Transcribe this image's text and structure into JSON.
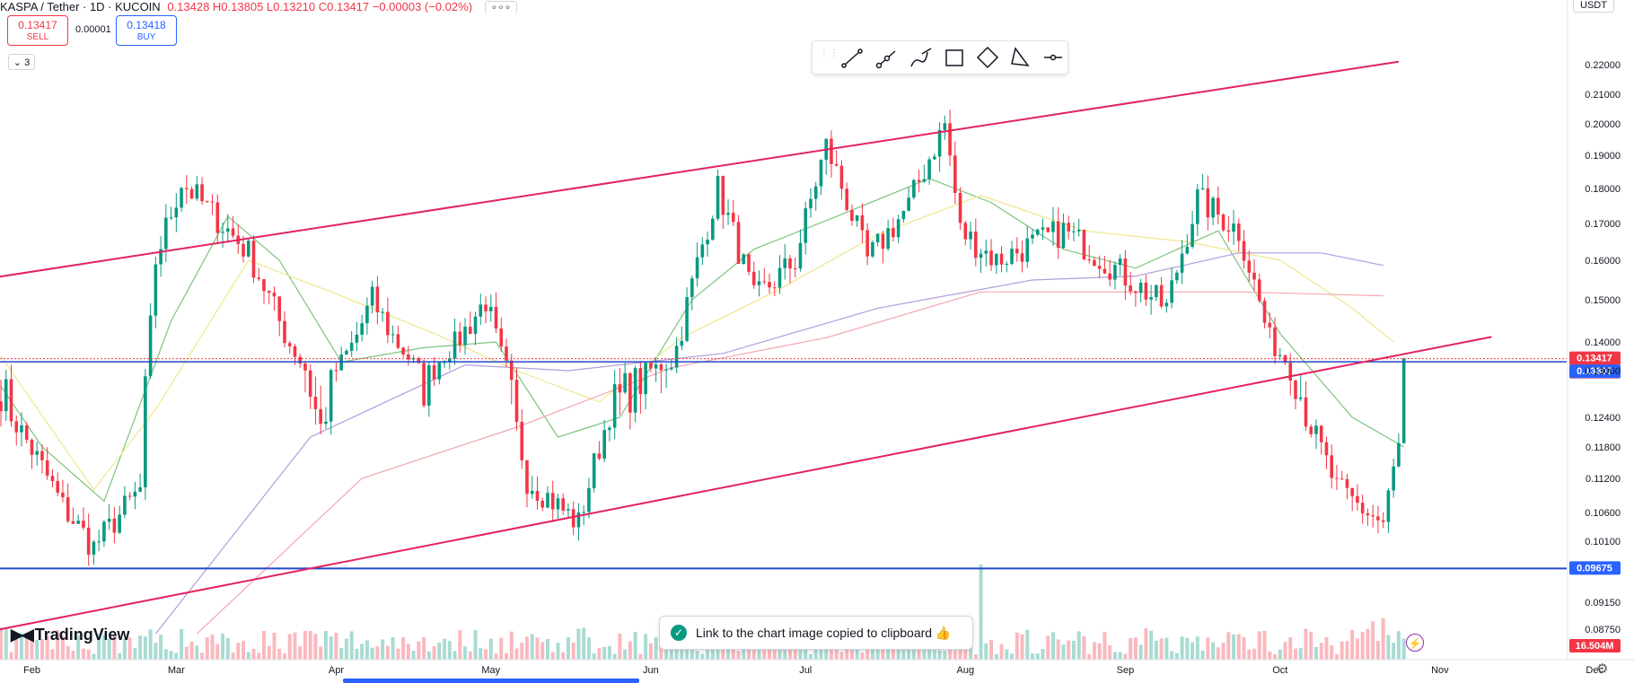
{
  "header": {
    "symbol": "KASPA / Tether · 1D · KUCOIN",
    "ohlc": "0.13428 H0.13805 L0.13210 C0.13417 −0.00003 (−0.02%)",
    "more_label": "∘∘∘"
  },
  "trade": {
    "sell_price": "0.13417",
    "sell_label": "SELL",
    "buy_price": "0.13418",
    "buy_label": "BUY",
    "spread": "0.00001"
  },
  "indicators_toggle": "3",
  "currency": "USDT",
  "toast": {
    "message": "Link to the chart image copied to clipboard 👍"
  },
  "logo": "TradingView",
  "drawing_tools": [
    "trend-line-icon",
    "ray-icon",
    "brush-icon",
    "rectangle-icon",
    "path-icon",
    "triangle-icon",
    "horizontal-ray-icon"
  ],
  "colors": {
    "up": "#089981",
    "down": "#f23645",
    "channel": "#e2235e",
    "support": "#2448c8",
    "ma_fast": "#7dc47e",
    "ma_mid": "#f0e68c",
    "ma_slow": "#b39ddb",
    "ma_long": "#f4a6ad"
  },
  "chart_data": {
    "type": "candlestick",
    "price_ticks": [
      "0.22000",
      "0.21000",
      "0.20000",
      "0.19000",
      "0.18000",
      "0.17000",
      "0.16000",
      "0.15000",
      "0.14000",
      "0.13000",
      "0.12400",
      "0.11800",
      "0.11200",
      "0.10600",
      "0.10100",
      "0.09150",
      "0.08750"
    ],
    "month_labels": [
      "Feb",
      "Mar",
      "Apr",
      "May",
      "Jun",
      "Jul",
      "Aug",
      "Sep",
      "Oct",
      "Nov",
      "Dec"
    ],
    "price_badges": {
      "last": "0.13417",
      "countdown": "16:35:00",
      "blue_line": "0.13307",
      "support": "0.09675",
      "volume": "16.504M"
    },
    "levels": {
      "last": 0.13417,
      "blue_line": 0.13307,
      "support": 0.09675
    },
    "channel": {
      "upper": [
        [
          -2,
          0.1555
        ],
        [
          271,
          0.221
        ]
      ],
      "lower": [
        [
          -2,
          0.0872
        ],
        [
          289,
          0.1412
        ]
      ]
    },
    "waypoints": [
      [
        0,
        0.128
      ],
      [
        12,
        0.107
      ],
      [
        18,
        0.1
      ],
      [
        27,
        0.11
      ],
      [
        30,
        0.16
      ],
      [
        35,
        0.182
      ],
      [
        48,
        0.162
      ],
      [
        62,
        0.122
      ],
      [
        72,
        0.15
      ],
      [
        82,
        0.128
      ],
      [
        94,
        0.15
      ],
      [
        102,
        0.112
      ],
      [
        112,
        0.104
      ],
      [
        118,
        0.125
      ],
      [
        130,
        0.133
      ],
      [
        139,
        0.18
      ],
      [
        146,
        0.15
      ],
      [
        154,
        0.16
      ],
      [
        160,
        0.193
      ],
      [
        168,
        0.16
      ],
      [
        176,
        0.175
      ],
      [
        183,
        0.2
      ],
      [
        186,
        0.168
      ],
      [
        193,
        0.16
      ],
      [
        206,
        0.168
      ],
      [
        214,
        0.16
      ],
      [
        226,
        0.148
      ],
      [
        232,
        0.177
      ],
      [
        240,
        0.168
      ],
      [
        246,
        0.14
      ],
      [
        250,
        0.132
      ],
      [
        259,
        0.11
      ],
      [
        268,
        0.104
      ],
      [
        271,
        0.118
      ],
      [
        272,
        0.1342
      ]
    ],
    "moving_averages": {
      "fast": [
        [
          0,
          0.128
        ],
        [
          8,
          0.118
        ],
        [
          20,
          0.108
        ],
        [
          33,
          0.145
        ],
        [
          44,
          0.172
        ],
        [
          54,
          0.16
        ],
        [
          66,
          0.133
        ],
        [
          82,
          0.138
        ],
        [
          96,
          0.14
        ],
        [
          108,
          0.12
        ],
        [
          120,
          0.124
        ],
        [
          134,
          0.15
        ],
        [
          146,
          0.163
        ],
        [
          162,
          0.172
        ],
        [
          180,
          0.183
        ],
        [
          192,
          0.176
        ],
        [
          206,
          0.163
        ],
        [
          220,
          0.158
        ],
        [
          236,
          0.168
        ],
        [
          248,
          0.142
        ],
        [
          262,
          0.124
        ],
        [
          272,
          0.118
        ]
      ],
      "mid": [
        [
          0,
          0.135
        ],
        [
          18,
          0.11
        ],
        [
          30,
          0.125
        ],
        [
          48,
          0.16
        ],
        [
          64,
          0.152
        ],
        [
          84,
          0.142
        ],
        [
          100,
          0.13
        ],
        [
          116,
          0.126
        ],
        [
          132,
          0.141
        ],
        [
          150,
          0.152
        ],
        [
          170,
          0.167
        ],
        [
          190,
          0.178
        ],
        [
          210,
          0.168
        ],
        [
          230,
          0.165
        ],
        [
          248,
          0.16
        ],
        [
          262,
          0.148
        ],
        [
          270,
          0.14
        ]
      ],
      "slow": [
        [
          30,
          0.0868
        ],
        [
          60,
          0.12
        ],
        [
          90,
          0.132
        ],
        [
          110,
          0.13
        ],
        [
          140,
          0.136
        ],
        [
          170,
          0.148
        ],
        [
          200,
          0.155
        ],
        [
          220,
          0.156
        ],
        [
          240,
          0.162
        ],
        [
          256,
          0.162
        ],
        [
          268,
          0.1587
        ]
      ],
      "long": [
        [
          38,
          0.0868
        ],
        [
          70,
          0.112
        ],
        [
          100,
          0.122
        ],
        [
          130,
          0.131
        ],
        [
          160,
          0.141
        ],
        [
          190,
          0.152
        ],
        [
          215,
          0.152
        ],
        [
          240,
          0.152
        ],
        [
          268,
          0.151
        ]
      ]
    }
  }
}
